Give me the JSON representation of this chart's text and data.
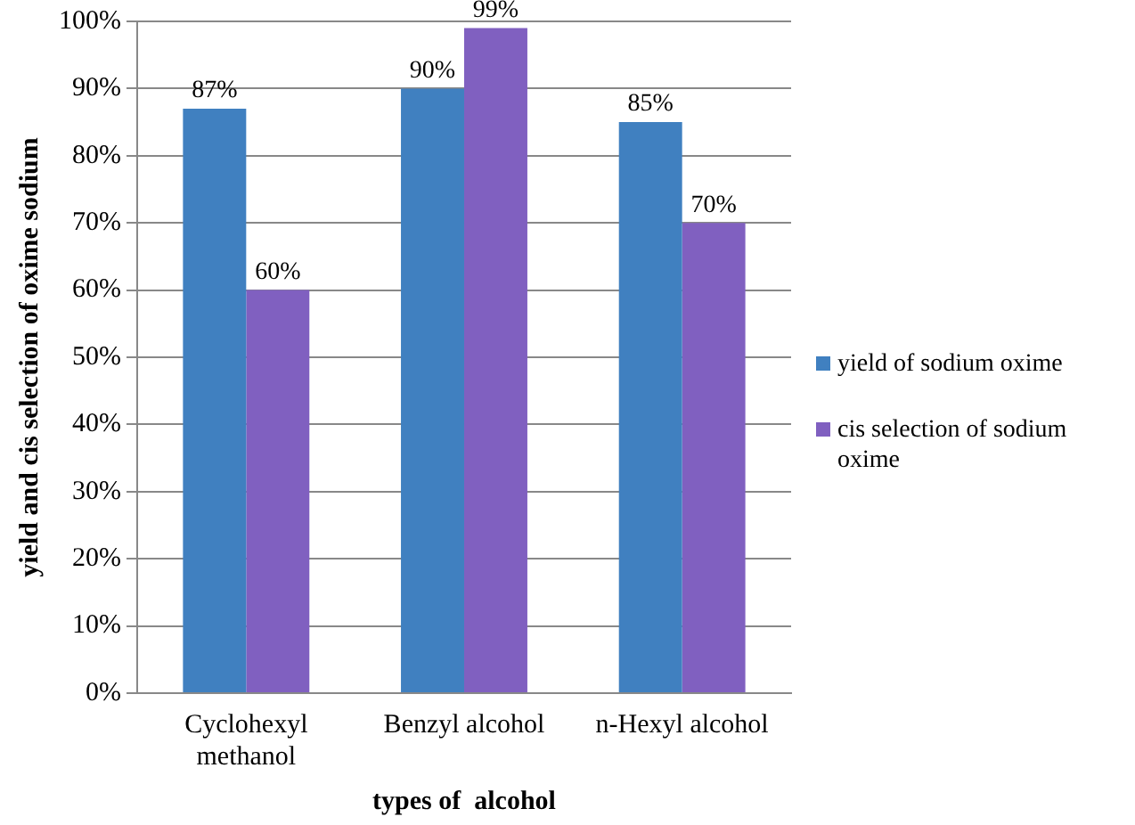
{
  "chart_data": {
    "type": "bar",
    "xlabel": "types of  alcohol",
    "ylabel": "yield and cis selection of oxime sodium",
    "categories": [
      "Cyclohexyl methanol",
      "Benzyl alcohol",
      "n-Hexyl alcohol"
    ],
    "series": [
      {
        "name": "yield of sodium oxime",
        "color": "#4080c0",
        "values": [
          87,
          90,
          85
        ],
        "value_labels": [
          "87%",
          "90%",
          "85%"
        ]
      },
      {
        "name": "cis selection of sodium oxime",
        "color": "#8060c0",
        "values": [
          60,
          99,
          70
        ],
        "value_labels": [
          "60%",
          "99%",
          "70%"
        ]
      }
    ],
    "ylim": [
      0,
      100
    ],
    "yticks": [
      {
        "value": 0,
        "label": "0%"
      },
      {
        "value": 10,
        "label": "10%"
      },
      {
        "value": 20,
        "label": "20%"
      },
      {
        "value": 30,
        "label": "30%"
      },
      {
        "value": 40,
        "label": "40%"
      },
      {
        "value": 50,
        "label": "50%"
      },
      {
        "value": 60,
        "label": "60%"
      },
      {
        "value": 70,
        "label": "70%"
      },
      {
        "value": 80,
        "label": "80%"
      },
      {
        "value": 90,
        "label": "90%"
      },
      {
        "value": 100,
        "label": "100%"
      }
    ],
    "grid": "y",
    "legend": "right"
  }
}
